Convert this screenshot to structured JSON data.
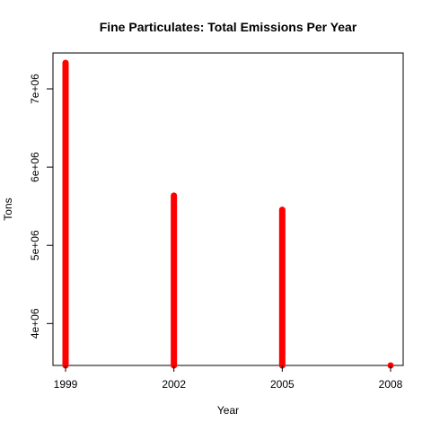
{
  "chart_data": {
    "type": "bar",
    "title": "Fine Particulates: Total Emissions Per Year",
    "xlabel": "Year",
    "ylabel": "Tons",
    "categories": [
      "1999",
      "2002",
      "2005",
      "2008"
    ],
    "x": [
      1999,
      2002,
      2005,
      2008
    ],
    "values": [
      7332967,
      5635780,
      5454703,
      3464206
    ],
    "xlim": [
      1999,
      2008
    ],
    "ylim": [
      3464206,
      7332967
    ],
    "y_ticks": [
      4000000,
      5000000,
      6000000,
      7000000
    ],
    "y_tick_labels": [
      "4e+06",
      "5e+06",
      "6e+06",
      "7e+06"
    ],
    "x_ticks": [
      1999,
      2002,
      2005,
      2008
    ],
    "x_tick_labels": [
      "1999",
      "2002",
      "2005",
      "2008"
    ],
    "bar_color": "#ff0000",
    "grid": false,
    "legend": "none"
  }
}
